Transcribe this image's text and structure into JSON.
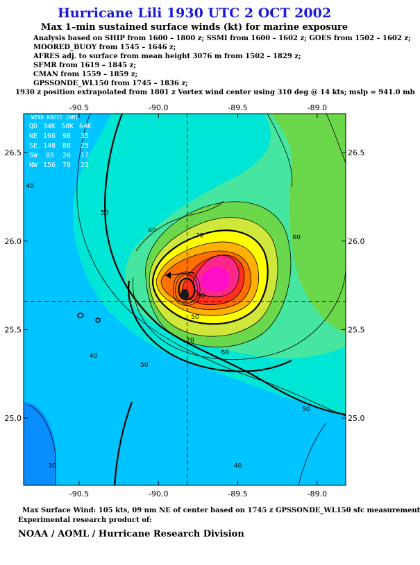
{
  "title": "Hurricane Lili 1930 UTC 2 OCT 2002",
  "subtitle": "Max 1–min sustained surface winds (kt) for marine exposure",
  "sources": [
    "Analysis based on  SHIP from 1600 – 1800 z;  SSMI from 1600 – 1602 z;  GOES from 1502 – 1602 z;",
    "MOORED_BUOY from 1545 – 1646 z;",
    "AFRES adj. to surface from mean height 3076 m from 1502 – 1829 z;",
    "SFMR from 1619 – 1845 z;",
    "CMAN from 1559 – 1859 z;",
    "GPSSONDE_WL150 from 1745 – 1836 z;"
  ],
  "position_note": "1930 z position extrapolated from 1801 z Vortex wind center using 310 deg @ 14 kts; mslp = 941.0 mb",
  "footer": {
    "max_wind": "Max Surface Wind: 105 kts, 09 nm NE of center based on 1745 z GPSSONDE_WL150 sfc measurement",
    "experimental": "Experimental research product of:",
    "org": "NOAA / AOML / Hurricane Research Division"
  },
  "map": {
    "lon_range": [
      -90.85,
      -88.82
    ],
    "lat_range": [
      24.62,
      26.72
    ],
    "lon_ticks": [
      "-90.5",
      "-90.0",
      "-89.5",
      "-89.0"
    ],
    "lon_tick_values": [
      -90.5,
      -90.0,
      -89.5,
      -89.0
    ],
    "lat_ticks": [
      "26.5",
      "26.0",
      "25.5",
      "25.0"
    ],
    "lat_tick_values": [
      26.5,
      26.0,
      25.5,
      25.0
    ],
    "center": {
      "lon": -89.82,
      "lat": 25.66
    },
    "contour_labels": [
      {
        "text": "40",
        "lon": -90.81,
        "lat": 26.3
      },
      {
        "text": "50",
        "lon": -90.34,
        "lat": 26.15
      },
      {
        "text": "60",
        "lon": -90.04,
        "lat": 26.05
      },
      {
        "text": "70",
        "lon": -89.74,
        "lat": 26.02
      },
      {
        "text": "60",
        "lon": -89.13,
        "lat": 26.01
      },
      {
        "text": "70",
        "lon": -89.8,
        "lat": 25.43
      },
      {
        "text": "60",
        "lon": -89.58,
        "lat": 25.36
      },
      {
        "text": "50",
        "lon": -90.09,
        "lat": 25.29
      },
      {
        "text": "40",
        "lon": -90.41,
        "lat": 25.34
      },
      {
        "text": "50",
        "lon": -89.07,
        "lat": 25.04
      },
      {
        "text": "40",
        "lon": -89.5,
        "lat": 24.72
      },
      {
        "text": "30",
        "lon": -90.67,
        "lat": 24.72
      },
      {
        "text": "50",
        "lon": -89.77,
        "lat": 25.56
      },
      {
        "text": "90",
        "lon": -89.73,
        "lat": 25.68
      }
    ],
    "colors": {
      "c30": "#0a8dff",
      "c40": "#00c4ff",
      "c50": "#00e6d6",
      "c60": "#46e6a0",
      "c70": "#6ad84a",
      "c80": "#cfe63a",
      "c90": "#ffff00",
      "c100": "#ffb000",
      "c110": "#ff7000",
      "c120": "#ff3020",
      "c130": "#ff2888",
      "c140": "#ff10c8"
    }
  },
  "wind_radii": {
    "title": "WIND RADII (NM)",
    "header": [
      "QD",
      "34K",
      "50K",
      "64K"
    ],
    "rows": [
      [
        "NE",
        "166",
        "98",
        "35"
      ],
      [
        "SE",
        "148",
        "88",
        "25"
      ],
      [
        "SW",
        "85",
        "26",
        "17"
      ],
      [
        "NW",
        "156",
        "78",
        "21"
      ]
    ]
  }
}
